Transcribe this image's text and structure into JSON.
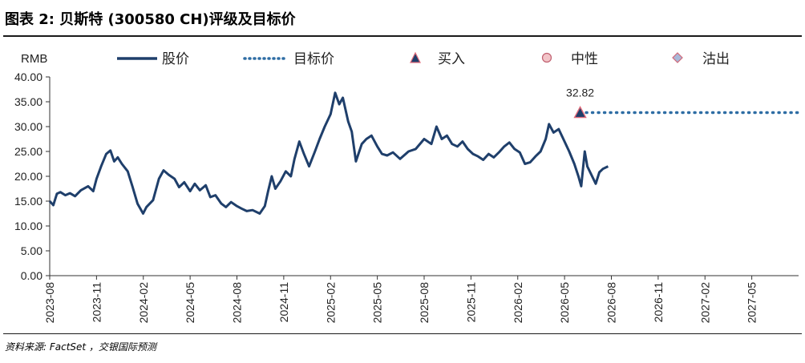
{
  "figure": {
    "title": "图表 2: 贝斯特 (300580 CH)评级及目标价",
    "source": "资料来源: FactSet ，交银国际预测"
  },
  "chart_data": {
    "type": "line",
    "unit_label": "RMB",
    "ylim": [
      0,
      40
    ],
    "yticks": [
      "0.00",
      "5.00",
      "10.00",
      "15.00",
      "20.00",
      "25.00",
      "30.00",
      "35.00",
      "40.00"
    ],
    "xlim": [
      "2023-08",
      "2027-08"
    ],
    "xticks": [
      "2023-08",
      "2023-11",
      "2024-02",
      "2024-05",
      "2024-08",
      "2024-11",
      "2025-02",
      "2025-05",
      "2025-08",
      "2025-11",
      "2026-02",
      "2026-05",
      "2026-08",
      "2026-11",
      "2027-02",
      "2027-05"
    ],
    "grid": false,
    "legend": [
      {
        "label": "股价",
        "style": "solid-line",
        "color": "#1f3f6b"
      },
      {
        "label": "目标价",
        "style": "dotted-line",
        "color": "#2e6da4"
      },
      {
        "label": "买入",
        "style": "triangle-marker",
        "color": "#1f3f6b"
      },
      {
        "label": "中性",
        "style": "circle-marker",
        "color": "#e8a0a8"
      },
      {
        "label": "沽出",
        "style": "diamond-marker",
        "color": "#d98a9a"
      }
    ],
    "series": [
      {
        "name": "股价",
        "color": "#1f3f6b",
        "points": [
          [
            "2023-08-01",
            15.0
          ],
          [
            "2023-08-08",
            14.2
          ],
          [
            "2023-08-15",
            16.5
          ],
          [
            "2023-08-22",
            16.8
          ],
          [
            "2023-09-01",
            16.2
          ],
          [
            "2023-09-10",
            16.6
          ],
          [
            "2023-09-20",
            16.0
          ],
          [
            "2023-10-01",
            17.2
          ],
          [
            "2023-10-15",
            18.0
          ],
          [
            "2023-10-25",
            17.0
          ],
          [
            "2023-11-01",
            19.5
          ],
          [
            "2023-11-10",
            22.0
          ],
          [
            "2023-11-20",
            24.5
          ],
          [
            "2023-11-28",
            25.2
          ],
          [
            "2023-12-05",
            23.0
          ],
          [
            "2023-12-12",
            23.8
          ],
          [
            "2023-12-20",
            22.5
          ],
          [
            "2024-01-01",
            21.0
          ],
          [
            "2024-01-10",
            18.0
          ],
          [
            "2024-01-20",
            14.5
          ],
          [
            "2024-01-31",
            12.5
          ],
          [
            "2024-02-07",
            13.8
          ],
          [
            "2024-02-20",
            15.2
          ],
          [
            "2024-03-01",
            19.5
          ],
          [
            "2024-03-10",
            21.2
          ],
          [
            "2024-03-20",
            20.3
          ],
          [
            "2024-04-01",
            19.5
          ],
          [
            "2024-04-10",
            17.8
          ],
          [
            "2024-04-20",
            18.8
          ],
          [
            "2024-05-01",
            17.0
          ],
          [
            "2024-05-10",
            18.5
          ],
          [
            "2024-05-20",
            17.2
          ],
          [
            "2024-06-01",
            18.2
          ],
          [
            "2024-06-10",
            15.8
          ],
          [
            "2024-06-20",
            16.2
          ],
          [
            "2024-07-01",
            14.5
          ],
          [
            "2024-07-10",
            13.8
          ],
          [
            "2024-07-20",
            14.8
          ],
          [
            "2024-08-01",
            14.0
          ],
          [
            "2024-08-10",
            13.5
          ],
          [
            "2024-08-20",
            13.0
          ],
          [
            "2024-09-01",
            13.2
          ],
          [
            "2024-09-15",
            12.5
          ],
          [
            "2024-09-25",
            14.0
          ],
          [
            "2024-10-01",
            17.0
          ],
          [
            "2024-10-08",
            20.0
          ],
          [
            "2024-10-15",
            17.5
          ],
          [
            "2024-10-25",
            19.0
          ],
          [
            "2024-11-05",
            21.0
          ],
          [
            "2024-11-15",
            20.0
          ],
          [
            "2024-11-22",
            23.5
          ],
          [
            "2024-12-01",
            27.0
          ],
          [
            "2024-12-10",
            24.5
          ],
          [
            "2024-12-20",
            22.0
          ],
          [
            "2025-01-01",
            25.0
          ],
          [
            "2025-01-10",
            27.5
          ],
          [
            "2025-01-20",
            30.0
          ],
          [
            "2025-02-01",
            32.5
          ],
          [
            "2025-02-10",
            36.8
          ],
          [
            "2025-02-18",
            34.5
          ],
          [
            "2025-02-25",
            35.8
          ],
          [
            "2025-03-05",
            31.0
          ],
          [
            "2025-03-12",
            29.0
          ],
          [
            "2025-03-20",
            23.0
          ],
          [
            "2025-04-01",
            26.5
          ],
          [
            "2025-04-10",
            27.5
          ],
          [
            "2025-04-20",
            28.2
          ],
          [
            "2025-05-01",
            26.0
          ],
          [
            "2025-05-10",
            24.5
          ],
          [
            "2025-05-20",
            24.2
          ],
          [
            "2025-06-01",
            24.8
          ],
          [
            "2025-06-15",
            23.5
          ],
          [
            "2025-07-01",
            25.0
          ],
          [
            "2025-07-15",
            25.5
          ],
          [
            "2025-08-01",
            27.5
          ],
          [
            "2025-08-15",
            26.5
          ],
          [
            "2025-08-25",
            30.0
          ],
          [
            "2025-09-05",
            27.5
          ],
          [
            "2025-09-15",
            28.2
          ],
          [
            "2025-09-25",
            26.5
          ],
          [
            "2025-10-05",
            26.0
          ],
          [
            "2025-10-15",
            27.0
          ],
          [
            "2025-10-25",
            25.5
          ],
          [
            "2025-11-05",
            24.5
          ],
          [
            "2025-11-15",
            24.0
          ],
          [
            "2025-11-25",
            23.3
          ],
          [
            "2025-12-05",
            24.5
          ],
          [
            "2025-12-15",
            23.8
          ],
          [
            "2025-12-25",
            24.8
          ],
          [
            "2026-01-05",
            26.0
          ],
          [
            "2026-01-15",
            26.8
          ],
          [
            "2026-01-25",
            25.5
          ],
          [
            "2026-02-05",
            24.8
          ],
          [
            "2026-02-15",
            22.5
          ],
          [
            "2026-02-25",
            22.8
          ],
          [
            "2026-03-05",
            24.0
          ],
          [
            "2026-03-15",
            25.0
          ],
          [
            "2026-03-25",
            27.5
          ],
          [
            "2026-04-01",
            30.5
          ],
          [
            "2026-04-10",
            28.8
          ],
          [
            "2026-04-20",
            29.5
          ],
          [
            "2026-05-01",
            27.0
          ],
          [
            "2026-05-10",
            25.0
          ],
          [
            "2026-05-20",
            22.5
          ],
          [
            "2026-05-28",
            20.0
          ],
          [
            "2026-06-03",
            18.0
          ],
          [
            "2026-06-10",
            25.0
          ],
          [
            "2026-06-15",
            22.0
          ],
          [
            "2026-06-22",
            20.5
          ],
          [
            "2026-07-01",
            18.5
          ],
          [
            "2026-07-08",
            20.8
          ],
          [
            "2026-07-15",
            21.5
          ],
          [
            "2026-07-25",
            22.0
          ]
        ]
      },
      {
        "name": "目标价",
        "color": "#2e6da4",
        "points": [
          [
            "2026-06-01",
            32.82
          ],
          [
            "2027-08-01",
            32.82
          ]
        ]
      }
    ],
    "rating_marks": [
      {
        "type": "买入",
        "date": "2026-06-01",
        "value": 32.82,
        "label": "32.82"
      }
    ]
  }
}
